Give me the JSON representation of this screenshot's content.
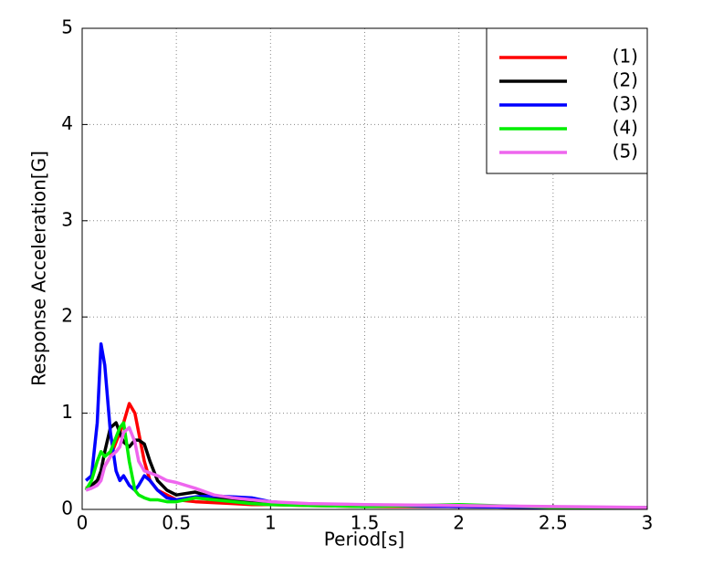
{
  "chart_data": {
    "type": "line",
    "xlabel": "Period[s]",
    "ylabel": "Response Acceleration[G]",
    "x": [
      0.02,
      0.05,
      0.08,
      0.1,
      0.12,
      0.15,
      0.18,
      0.2,
      0.22,
      0.25,
      0.28,
      0.3,
      0.33,
      0.36,
      0.4,
      0.45,
      0.5,
      0.6,
      0.7,
      0.8,
      0.9,
      1.0,
      1.2,
      1.5,
      2.0,
      2.5,
      3.0
    ],
    "series": [
      {
        "name": "(1)",
        "color": "#ff0000",
        "values": [
          0.22,
          0.25,
          0.3,
          0.35,
          0.45,
          0.55,
          0.7,
          0.8,
          0.9,
          1.1,
          1.0,
          0.8,
          0.5,
          0.3,
          0.2,
          0.15,
          0.1,
          0.08,
          0.07,
          0.06,
          0.05,
          0.05,
          0.04,
          0.03,
          0.03,
          0.02,
          0.02
        ]
      },
      {
        "name": "(2)",
        "color": "#000000",
        "values": [
          0.2,
          0.25,
          0.3,
          0.4,
          0.6,
          0.85,
          0.9,
          0.8,
          0.7,
          0.65,
          0.72,
          0.72,
          0.68,
          0.5,
          0.3,
          0.2,
          0.15,
          0.18,
          0.12,
          0.1,
          0.08,
          0.07,
          0.05,
          0.04,
          0.03,
          0.02,
          0.02
        ]
      },
      {
        "name": "(3)",
        "color": "#0000ff",
        "values": [
          0.3,
          0.35,
          0.9,
          1.72,
          1.5,
          0.8,
          0.4,
          0.3,
          0.35,
          0.25,
          0.2,
          0.25,
          0.35,
          0.3,
          0.2,
          0.12,
          0.1,
          0.13,
          0.14,
          0.13,
          0.12,
          0.08,
          0.05,
          0.04,
          0.03,
          0.02,
          0.02
        ]
      },
      {
        "name": "(4)",
        "color": "#00ee00",
        "values": [
          0.2,
          0.3,
          0.5,
          0.6,
          0.55,
          0.6,
          0.75,
          0.85,
          0.9,
          0.5,
          0.2,
          0.15,
          0.12,
          0.1,
          0.1,
          0.08,
          0.08,
          0.12,
          0.1,
          0.08,
          0.06,
          0.05,
          0.04,
          0.03,
          0.05,
          0.02,
          0.02
        ]
      },
      {
        "name": "(5)",
        "color": "#ee66ee",
        "values": [
          0.2,
          0.22,
          0.25,
          0.3,
          0.45,
          0.55,
          0.6,
          0.65,
          0.8,
          0.85,
          0.7,
          0.5,
          0.4,
          0.38,
          0.35,
          0.3,
          0.28,
          0.22,
          0.15,
          0.12,
          0.1,
          0.08,
          0.06,
          0.05,
          0.04,
          0.03,
          0.02
        ]
      }
    ],
    "xlim": [
      0,
      3
    ],
    "xticks": [
      0,
      0.5,
      1,
      1.5,
      2,
      2.5,
      3
    ],
    "ylim": [
      0,
      5
    ],
    "yticks": [
      0,
      1,
      2,
      3,
      4,
      5
    ],
    "grid": true,
    "legend": "upper right"
  }
}
